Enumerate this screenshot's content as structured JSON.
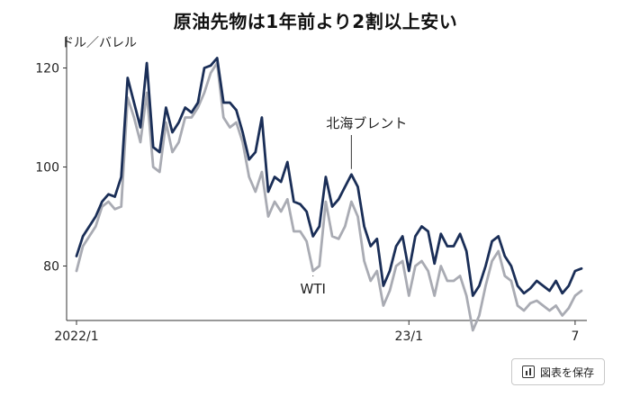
{
  "chart_data": {
    "type": "line",
    "title": "原油先物は1年前より2割以上安い",
    "ylabel": "ドル／バレル",
    "ylim": [
      69,
      125
    ],
    "yticks": [
      80,
      100,
      120
    ],
    "x_tick_labels": [
      {
        "label": "2022/1",
        "index": 0
      },
      {
        "label": "23/1",
        "index": 52
      },
      {
        "label": "7",
        "index": 78
      }
    ],
    "series": [
      {
        "name": "北海ブレント",
        "color": "#1a2e57",
        "values": [
          82,
          86,
          88,
          90,
          93,
          94.5,
          94,
          98,
          118,
          113,
          108,
          121,
          104,
          103,
          112,
          107,
          109,
          112,
          111,
          113,
          120,
          120.5,
          122,
          113,
          113,
          111.5,
          107,
          101.5,
          103,
          110,
          95,
          98,
          97,
          101,
          93,
          92.5,
          91,
          86,
          88,
          98,
          92,
          93.5,
          96,
          98.5,
          96,
          88,
          84,
          85.5,
          76,
          79,
          84,
          86,
          79,
          86,
          88,
          87,
          80.5,
          86.5,
          84,
          84,
          86.5,
          83,
          74,
          76,
          80,
          85,
          86,
          82,
          80,
          76,
          74.5,
          75.5,
          77,
          76,
          75,
          77,
          74.5,
          76,
          79,
          79.5
        ]
      },
      {
        "name": "WTI",
        "color": "#a9abb3",
        "values": [
          79,
          84,
          86,
          88,
          92,
          93,
          91.5,
          92,
          114,
          110,
          105,
          115,
          100,
          99,
          109,
          103,
          105,
          110,
          110,
          112,
          115,
          119,
          121,
          110,
          108,
          109,
          105,
          98,
          95,
          99,
          90,
          93,
          91,
          93.5,
          87,
          87,
          85,
          79,
          80,
          93,
          86,
          85.5,
          88,
          93,
          90,
          81,
          77,
          79,
          72,
          75,
          80,
          81,
          74,
          80,
          81,
          79,
          74,
          80,
          77,
          77,
          78,
          74,
          67,
          70,
          76,
          81,
          83,
          78,
          77,
          72,
          71,
          72.5,
          73,
          72,
          71,
          72,
          70,
          71.5,
          74,
          75
        ]
      }
    ],
    "annotations": [
      {
        "text": "北海ブレント",
        "series": "北海ブレント"
      },
      {
        "text": "WTI",
        "series": "WTI"
      }
    ],
    "grid": false,
    "legend": "none"
  },
  "ui": {
    "save_label": "図表を保存",
    "save_icon": "bar-chart-icon"
  }
}
